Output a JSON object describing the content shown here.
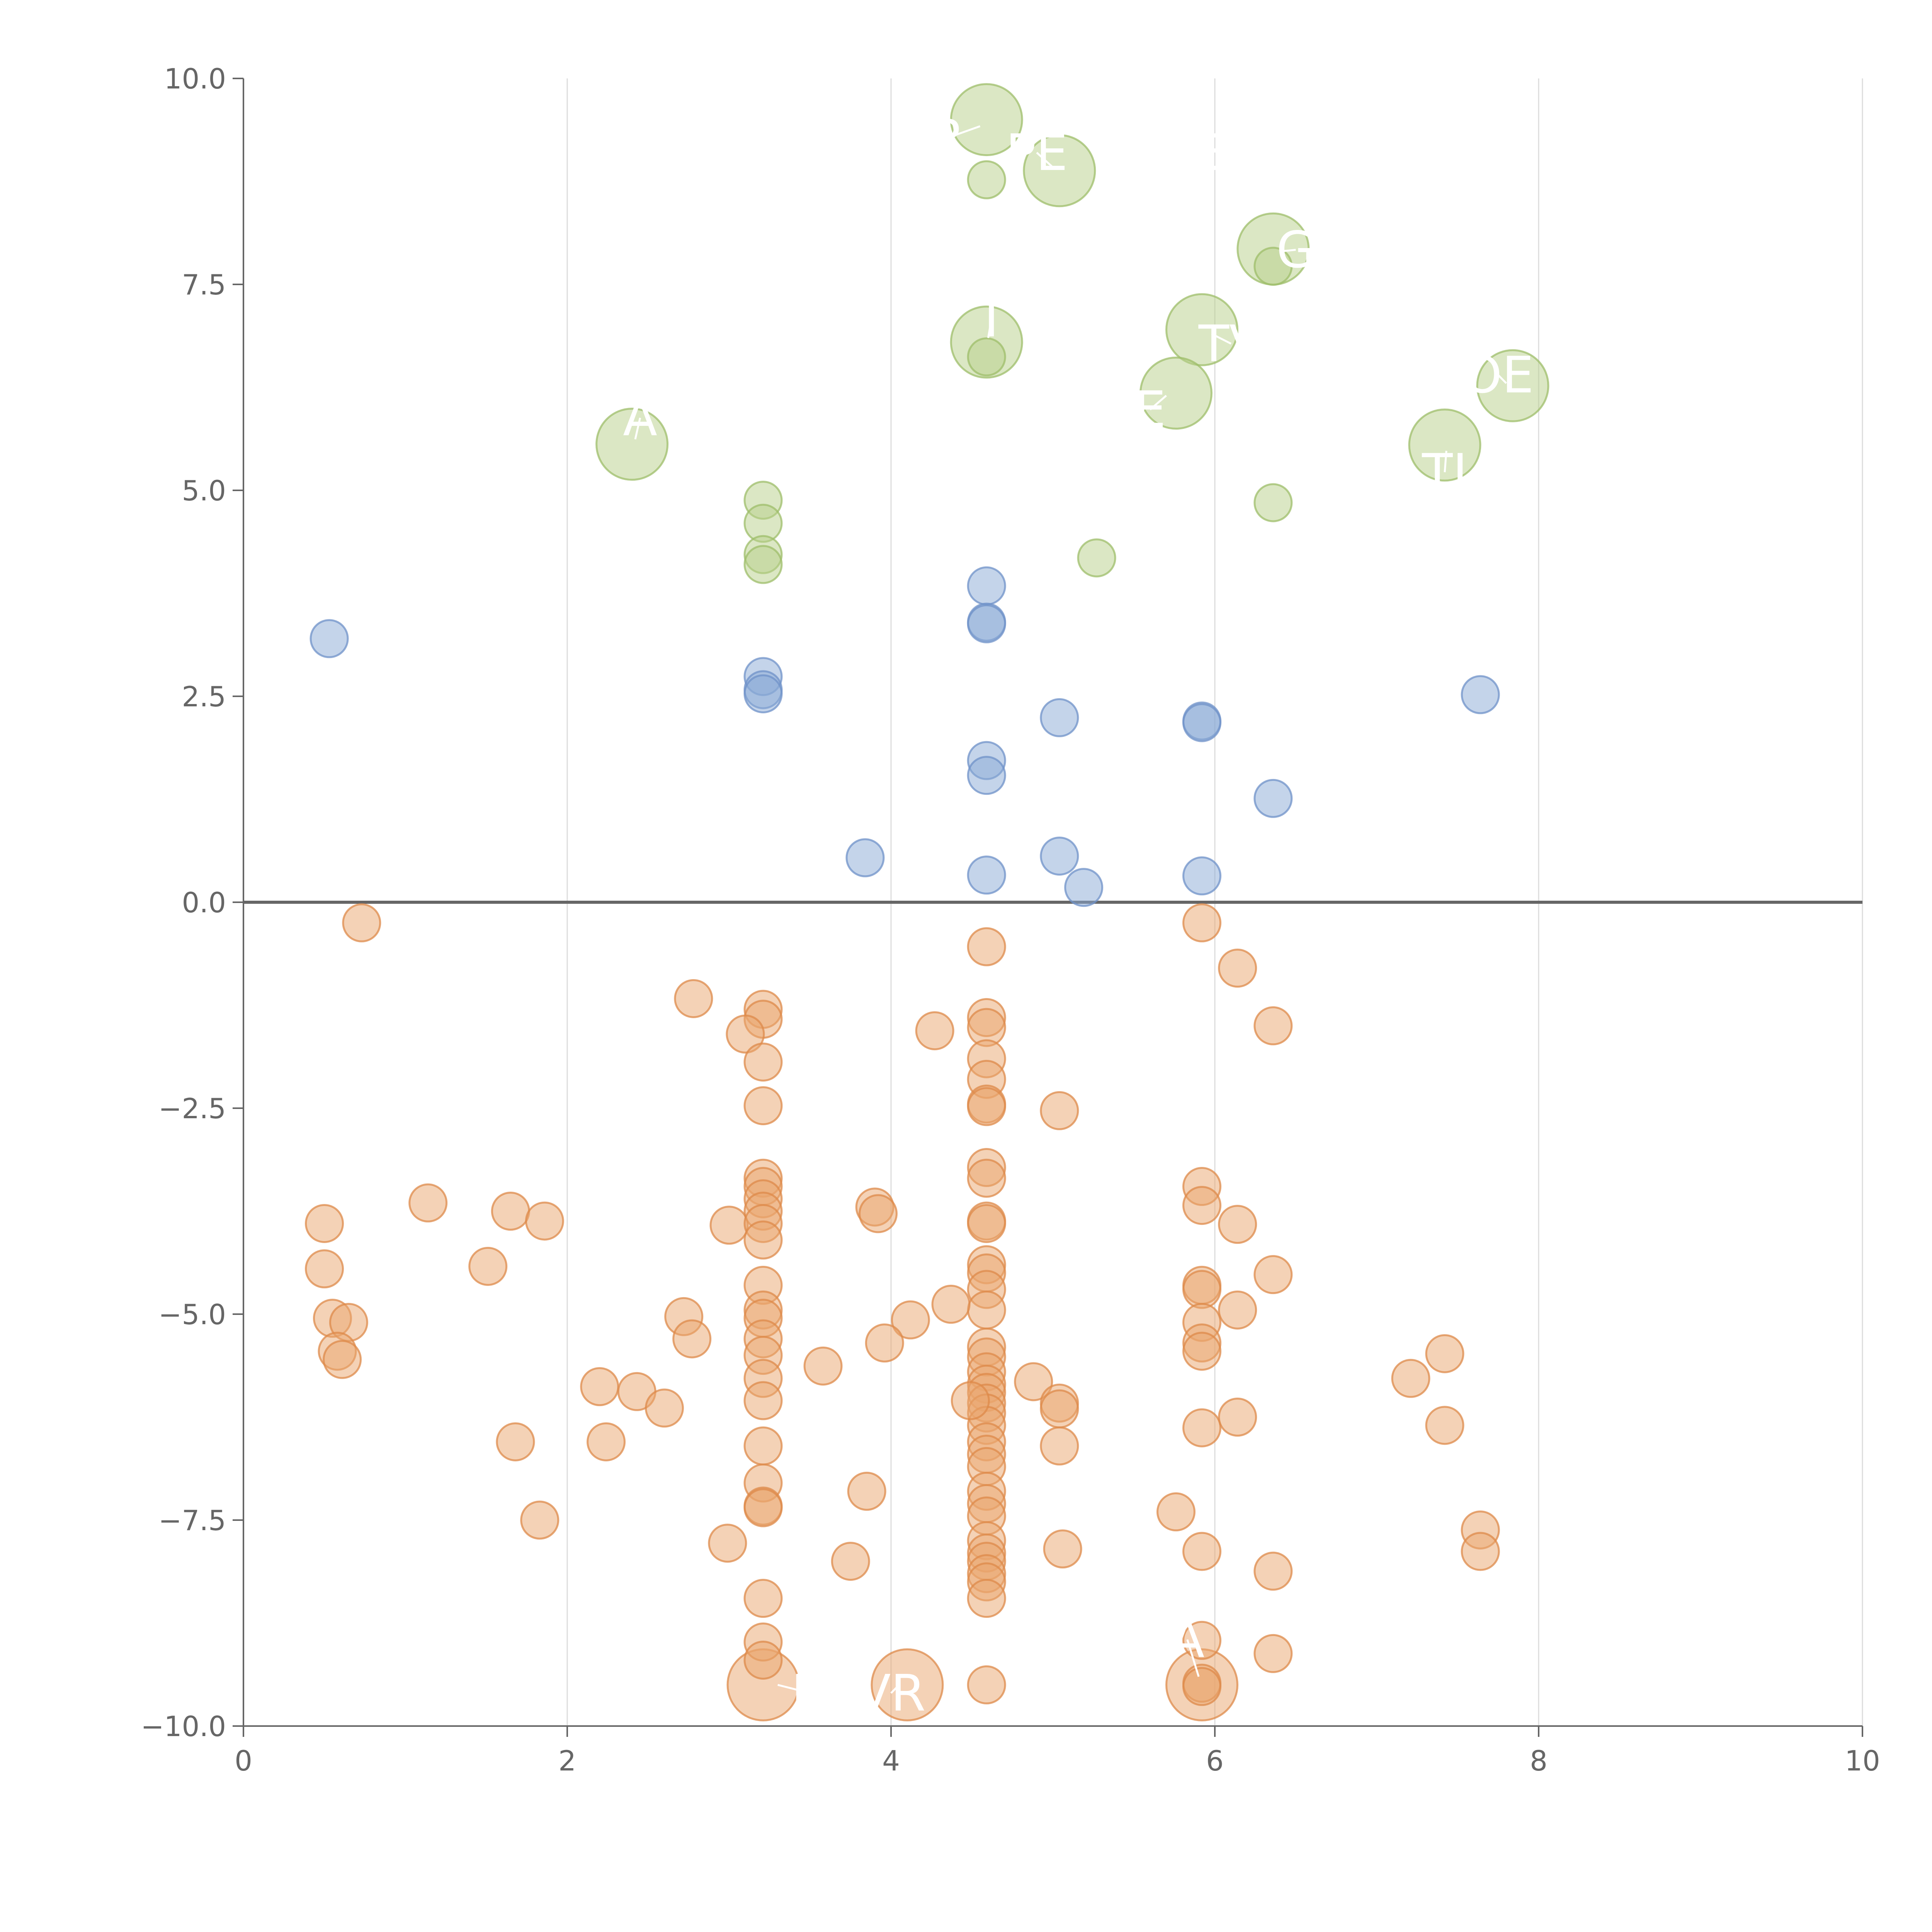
{
  "chart_data": {
    "type": "scatter",
    "title": "",
    "xlabel": "",
    "ylabel": "",
    "xlim": [
      0,
      10
    ],
    "ylim": [
      -10,
      10
    ],
    "x_ticks": [
      0,
      2,
      4,
      6,
      8,
      10
    ],
    "x_tick_labels": [
      "0",
      "2",
      "4",
      "6",
      "8",
      "10"
    ],
    "y_ticks": [
      10,
      7.5,
      5,
      2.5,
      0,
      -2.5,
      -5,
      -7.5,
      -10
    ],
    "y_tick_labels": [
      "10.0",
      "7.5",
      "5.0",
      "2.5",
      "0.0",
      "−2.5",
      "−5.0",
      "−7.5",
      "−10.0"
    ],
    "vertical_grid": true,
    "reference_line_y": 0,
    "colors": {
      "green_fill": "#b7d08a",
      "green_stroke": "#9dbd6a",
      "blue_fill": "#8aa9d6",
      "blue_stroke": "#6f92c8",
      "orange_fill": "#e9a56e",
      "orange_stroke": "#de8a4a",
      "axis": "#666666",
      "grid": "#dcdcdc"
    },
    "series": [
      {
        "name": "large-green",
        "color": "green",
        "size": "large",
        "points": [
          [
            4.59,
            9.5
          ],
          [
            5.04,
            8.88
          ],
          [
            6.36,
            7.93
          ],
          [
            5.92,
            6.95
          ],
          [
            4.59,
            6.8
          ],
          [
            5.76,
            6.18
          ],
          [
            7.84,
            6.27
          ],
          [
            2.4,
            5.56
          ],
          [
            7.42,
            5.55
          ]
        ]
      },
      {
        "name": "small-green",
        "color": "green",
        "size": "small",
        "points": [
          [
            4.59,
            8.77
          ],
          [
            6.36,
            7.72
          ],
          [
            4.59,
            6.62
          ],
          [
            3.21,
            4.88
          ],
          [
            3.21,
            4.6
          ],
          [
            3.21,
            4.22
          ],
          [
            3.21,
            4.1
          ],
          [
            5.27,
            4.18
          ],
          [
            6.36,
            4.85
          ]
        ]
      },
      {
        "name": "blue",
        "color": "blue",
        "size": "small",
        "points": [
          [
            0.53,
            3.2
          ],
          [
            3.21,
            2.74
          ],
          [
            3.21,
            2.58
          ],
          [
            3.21,
            2.53
          ],
          [
            4.59,
            3.84
          ],
          [
            4.59,
            3.4
          ],
          [
            4.59,
            3.38
          ],
          [
            5.04,
            2.24
          ],
          [
            5.92,
            2.2
          ],
          [
            5.92,
            2.18
          ],
          [
            7.64,
            2.52
          ],
          [
            4.59,
            1.72
          ],
          [
            4.59,
            1.54
          ],
          [
            6.36,
            1.26
          ],
          [
            3.84,
            0.54
          ],
          [
            5.04,
            0.56
          ],
          [
            4.59,
            0.33
          ],
          [
            5.19,
            0.18
          ],
          [
            5.92,
            0.32
          ]
        ]
      },
      {
        "name": "orange",
        "color": "orange",
        "size": "small",
        "points": [
          [
            0.73,
            -0.25
          ],
          [
            4.59,
            -0.54
          ],
          [
            5.92,
            -0.25
          ],
          [
            6.14,
            -0.8
          ],
          [
            2.78,
            -1.17
          ],
          [
            3.21,
            -1.3
          ],
          [
            3.21,
            -1.42
          ],
          [
            3.1,
            -1.6
          ],
          [
            3.21,
            -1.94
          ],
          [
            4.27,
            -1.56
          ],
          [
            4.59,
            -1.4
          ],
          [
            4.59,
            -1.52
          ],
          [
            4.59,
            -1.9
          ],
          [
            4.59,
            -2.15
          ],
          [
            4.59,
            -2.45
          ],
          [
            4.59,
            -2.48
          ],
          [
            6.36,
            -1.5
          ],
          [
            3.21,
            -2.47
          ],
          [
            5.04,
            -2.53
          ],
          [
            0.5,
            -3.9
          ],
          [
            1.14,
            -3.65
          ],
          [
            1.65,
            -3.75
          ],
          [
            1.86,
            -3.87
          ],
          [
            3.0,
            -3.92
          ],
          [
            3.21,
            -3.35
          ],
          [
            3.21,
            -3.45
          ],
          [
            3.21,
            -3.6
          ],
          [
            3.21,
            -3.75
          ],
          [
            3.21,
            -3.9
          ],
          [
            3.21,
            -4.1
          ],
          [
            3.9,
            -3.7
          ],
          [
            3.92,
            -3.78
          ],
          [
            4.59,
            -3.22
          ],
          [
            4.59,
            -3.35
          ],
          [
            4.59,
            -3.87
          ],
          [
            4.59,
            -3.9
          ],
          [
            5.92,
            -3.45
          ],
          [
            5.92,
            -3.68
          ],
          [
            6.14,
            -3.91
          ],
          [
            0.5,
            -4.45
          ],
          [
            1.51,
            -4.42
          ],
          [
            4.59,
            -4.4
          ],
          [
            4.59,
            -4.5
          ],
          [
            4.59,
            -4.7
          ],
          [
            4.59,
            -4.95
          ],
          [
            6.36,
            -4.52
          ],
          [
            5.92,
            -4.65
          ],
          [
            5.92,
            -4.7
          ],
          [
            3.21,
            -4.65
          ],
          [
            3.21,
            -4.95
          ],
          [
            3.21,
            -5.05
          ],
          [
            0.55,
            -5.05
          ],
          [
            0.65,
            -5.1
          ],
          [
            2.72,
            -5.03
          ],
          [
            2.77,
            -5.3
          ],
          [
            3.21,
            -5.3
          ],
          [
            3.21,
            -5.5
          ],
          [
            4.12,
            -5.07
          ],
          [
            4.37,
            -4.88
          ],
          [
            5.92,
            -5.1
          ],
          [
            6.14,
            -4.95
          ],
          [
            0.58,
            -5.45
          ],
          [
            0.61,
            -5.55
          ],
          [
            3.21,
            -5.78
          ],
          [
            3.58,
            -5.63
          ],
          [
            3.96,
            -5.35
          ],
          [
            4.59,
            -5.4
          ],
          [
            4.59,
            -5.52
          ],
          [
            4.59,
            -5.7
          ],
          [
            4.59,
            -5.85
          ],
          [
            4.59,
            -5.95
          ],
          [
            4.59,
            -6.08
          ],
          [
            4.59,
            -6.2
          ],
          [
            4.59,
            -6.35
          ],
          [
            4.59,
            -6.55
          ],
          [
            4.59,
            -6.7
          ],
          [
            4.59,
            -6.85
          ],
          [
            4.49,
            -6.05
          ],
          [
            4.88,
            -5.82
          ],
          [
            5.04,
            -6.08
          ],
          [
            5.04,
            -6.15
          ],
          [
            5.92,
            -5.35
          ],
          [
            5.92,
            -5.45
          ],
          [
            7.21,
            -5.78
          ],
          [
            7.42,
            -5.48
          ],
          [
            2.2,
            -5.88
          ],
          [
            2.43,
            -5.94
          ],
          [
            2.6,
            -6.14
          ],
          [
            3.21,
            -6.05
          ],
          [
            1.68,
            -6.55
          ],
          [
            2.24,
            -6.55
          ],
          [
            3.21,
            -6.6
          ],
          [
            5.04,
            -6.6
          ],
          [
            5.92,
            -6.38
          ],
          [
            6.14,
            -6.25
          ],
          [
            7.42,
            -6.35
          ],
          [
            3.21,
            -7.05
          ],
          [
            3.21,
            -7.33
          ],
          [
            3.21,
            -7.35
          ],
          [
            3.85,
            -7.15
          ],
          [
            1.83,
            -7.5
          ],
          [
            4.59,
            -7.15
          ],
          [
            4.59,
            -7.3
          ],
          [
            4.59,
            -7.45
          ],
          [
            4.59,
            -7.75
          ],
          [
            4.59,
            -7.9
          ],
          [
            4.59,
            -8.0
          ],
          [
            4.59,
            -8.15
          ],
          [
            4.59,
            -8.25
          ],
          [
            4.59,
            -8.45
          ],
          [
            5.76,
            -7.4
          ],
          [
            2.99,
            -7.78
          ],
          [
            3.75,
            -8.0
          ],
          [
            5.06,
            -7.85
          ],
          [
            5.92,
            -7.88
          ],
          [
            6.36,
            -8.12
          ],
          [
            7.64,
            -7.62
          ],
          [
            7.64,
            -7.88
          ],
          [
            3.21,
            -8.45
          ],
          [
            3.21,
            -8.98
          ],
          [
            3.21,
            -9.2
          ],
          [
            4.59,
            -9.5
          ],
          [
            5.92,
            -8.96
          ],
          [
            5.92,
            -9.48
          ],
          [
            5.92,
            -9.52
          ],
          [
            6.36,
            -9.12
          ]
        ]
      },
      {
        "name": "large-orange",
        "color": "orange",
        "size": "large",
        "points": [
          [
            3.21,
            -9.5
          ],
          [
            4.1,
            -9.5
          ],
          [
            5.92,
            -9.5
          ]
        ]
      }
    ],
    "annotations": [
      {
        "text": "R",
        "x": 4.35,
        "y": 9.28,
        "to_x": 4.55,
        "to_y": 9.42
      },
      {
        "text": "PE",
        "x": 4.9,
        "y": 9.1,
        "to_x": 5.0,
        "to_y": 8.92
      },
      {
        "text": "E",
        "x": 5.95,
        "y": 9.1,
        "to_x": 5.8,
        "to_y": 9.2
      },
      {
        "text": "G",
        "x": 6.5,
        "y": 7.92,
        "to_x": 6.4,
        "to_y": 7.9
      },
      {
        "text": "T",
        "x": 4.62,
        "y": 7.08,
        "to_x": 4.6,
        "to_y": 6.85
      },
      {
        "text": "TV",
        "x": 6.1,
        "y": 6.78,
        "to_x": 5.98,
        "to_y": 6.9
      },
      {
        "text": "E",
        "x": 5.6,
        "y": 5.98,
        "to_x": 5.7,
        "to_y": 6.15
      },
      {
        "text": "OE",
        "x": 7.75,
        "y": 6.4,
        "to_x": 7.8,
        "to_y": 6.3
      },
      {
        "text": "A",
        "x": 2.45,
        "y": 5.88,
        "to_x": 2.42,
        "to_y": 5.62
      },
      {
        "text": "TI",
        "x": 7.42,
        "y": 5.22,
        "to_x": 7.43,
        "to_y": 5.48
      },
      {
        "text": "A",
        "x": 5.83,
        "y": -8.95,
        "to_x": 5.9,
        "to_y": -9.4
      },
      {
        "text": "N",
        "x": 3.5,
        "y": -9.6,
        "to_x": 3.3,
        "to_y": -9.5
      },
      {
        "text": "VR",
        "x": 4.0,
        "y": -9.6,
        "to_x": 4.05,
        "to_y": -9.5
      }
    ]
  }
}
